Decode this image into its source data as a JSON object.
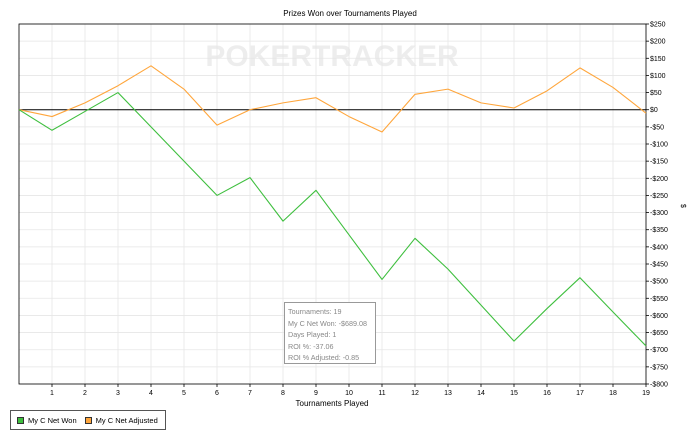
{
  "chart_data": {
    "type": "line",
    "title": "Prizes Won over Tournaments Played",
    "xlabel": "Tournaments Played",
    "ylabel": "$",
    "watermark": "POKERTRACKER",
    "x": [
      0,
      1,
      2,
      3,
      4,
      5,
      6,
      7,
      8,
      9,
      10,
      11,
      12,
      13,
      14,
      15,
      16,
      17,
      18,
      19
    ],
    "xlim": [
      0,
      19
    ],
    "ylim": [
      -800,
      250
    ],
    "y_tick_values": [
      250,
      200,
      150,
      100,
      50,
      0,
      -50,
      -100,
      -150,
      -200,
      -250,
      -300,
      -350,
      -400,
      -450,
      -500,
      -550,
      -600,
      -650,
      -700,
      -750,
      -800
    ],
    "y_tick_labels": [
      "$250",
      "$200",
      "$150",
      "$100",
      "$50",
      "$0",
      "-$50",
      "-$100",
      "-$150",
      "-$200",
      "-$250",
      "-$300",
      "-$350",
      "-$400",
      "-$450",
      "-$500",
      "-$550",
      "-$600",
      "-$650",
      "-$700",
      "-$750",
      "-$800"
    ],
    "x_tick_labels": [
      "1",
      "2",
      "3",
      "4",
      "5",
      "6",
      "7",
      "8",
      "9",
      "10",
      "11",
      "12",
      "13",
      "14",
      "15",
      "16",
      "17",
      "18",
      "19"
    ],
    "grid": true,
    "y_axis_side": "right",
    "legend_position": "bottom-left",
    "series": [
      {
        "name": "My C Net Won",
        "color": "#3fbf3f",
        "values": [
          0,
          -60,
          -5,
          50,
          -50,
          -150,
          -250,
          -198,
          -325,
          -235,
          -365,
          -495,
          -375,
          -465,
          -570,
          -675,
          -580,
          -490,
          -590,
          -689
        ]
      },
      {
        "name": "My C Net Adjusted",
        "color": "#ffa63c",
        "values": [
          0,
          -20,
          20,
          70,
          128,
          60,
          -45,
          0,
          20,
          35,
          -20,
          -65,
          45,
          60,
          20,
          5,
          55,
          122,
          65,
          -10
        ]
      }
    ],
    "tooltip": {
      "lines": [
        "Tournaments: 19",
        "My C Net Won: -$689.08",
        "Days Played: 1",
        "ROI %: -37.06",
        "ROI % Adjusted: -0.85"
      ]
    }
  }
}
